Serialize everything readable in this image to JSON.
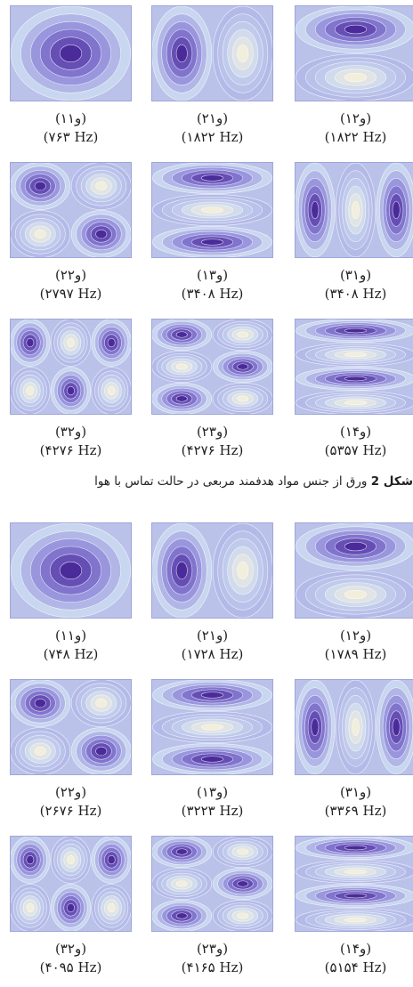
{
  "figure_1": {
    "caption_lead": "شکل 2",
    "caption_text": " ورق از جنس مواد هدفمند مربعی در حالت تماس با هوا",
    "modes": [
      {
        "label": "(۱و۱)",
        "freq": "(۷۶۳ Hz)",
        "m": 1,
        "n": 1
      },
      {
        "label": "(۲و۱)",
        "freq": "(۱۸۲۲ Hz)",
        "m": 2,
        "n": 1
      },
      {
        "label": "(۱و۲)",
        "freq": "(۱۸۲۲ Hz)",
        "m": 1,
        "n": 2
      },
      {
        "label": "(۲و۲)",
        "freq": "(۲۷۹۷ Hz)",
        "m": 2,
        "n": 2
      },
      {
        "label": "(۱و۳)",
        "freq": "(۳۴۰۸ Hz)",
        "m": 1,
        "n": 3
      },
      {
        "label": "(۳و۱)",
        "freq": "(۳۴۰۸ Hz)",
        "m": 3,
        "n": 1
      },
      {
        "label": "(۳و۲)",
        "freq": "(۴۲۷۶ Hz)",
        "m": 3,
        "n": 2
      },
      {
        "label": "(۲و۳)",
        "freq": "(۴۲۷۶ Hz)",
        "m": 2,
        "n": 3
      },
      {
        "label": "(۱و۴)",
        "freq": "(۵۳۵۷ Hz)",
        "m": 1,
        "n": 4
      }
    ]
  },
  "figure_2": {
    "modes": [
      {
        "label": "(۱و۱)",
        "freq": "(۷۴۸ Hz)",
        "m": 1,
        "n": 1
      },
      {
        "label": "(۲و۱)",
        "freq": "(۱۷۲۸ Hz)",
        "m": 2,
        "n": 1
      },
      {
        "label": "(۱و۲)",
        "freq": "(۱۷۸۹ Hz)",
        "m": 1,
        "n": 2
      },
      {
        "label": "(۲و۲)",
        "freq": "(۲۶۷۶ Hz)",
        "m": 2,
        "n": 2
      },
      {
        "label": "(۱و۳)",
        "freq": "(۳۲۲۳ Hz)",
        "m": 1,
        "n": 3
      },
      {
        "label": "(۳و۱)",
        "freq": "(۳۳۶۹ Hz)",
        "m": 3,
        "n": 1
      },
      {
        "label": "(۳و۲)",
        "freq": "(۴۰۹۵ Hz)",
        "m": 3,
        "n": 2
      },
      {
        "label": "(۲و۳)",
        "freq": "(۴۱۶۵ Hz)",
        "m": 2,
        "n": 3
      },
      {
        "label": "(۱و۴)",
        "freq": "(۵۱۵۴ Hz)",
        "m": 1,
        "n": 4
      }
    ]
  },
  "colors": {
    "deep": "#4b2a9a",
    "mid": "#8d86da",
    "pale": "#c9d6ef",
    "cream": "#f1eedc"
  }
}
